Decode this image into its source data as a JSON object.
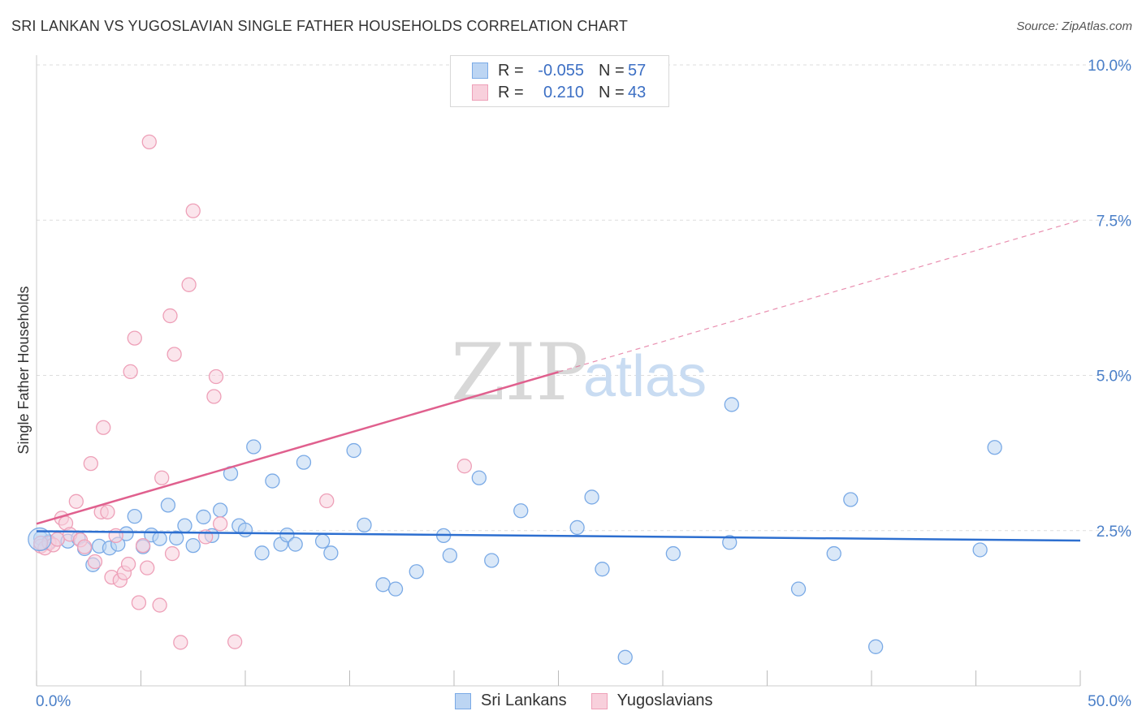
{
  "title": "SRI LANKAN VS YUGOSLAVIAN SINGLE FATHER HOUSEHOLDS CORRELATION CHART",
  "source": "Source: ZipAtlas.com",
  "watermark": {
    "zip": "ZIP",
    "atlas": "atlas"
  },
  "legend_stats": {
    "r_label": "R =",
    "n_label": "N =",
    "rows": [
      {
        "series": "Sri Lankans",
        "r": "-0.055",
        "n": "57"
      },
      {
        "series": "Yugoslavians",
        "r": "0.210",
        "n": "43"
      }
    ]
  },
  "chart_data": {
    "type": "scatter",
    "title": "SRI LANKAN VS YUGOSLAVIAN SINGLE FATHER HOUSEHOLDS CORRELATION CHART",
    "xlabel": "",
    "ylabel": "Single Father Households",
    "xlim": [
      0,
      50
    ],
    "ylim": [
      0,
      10.5
    ],
    "x_tick_labels": [
      "0.0%",
      "50.0%"
    ],
    "y_ticks": [
      {
        "value": 2.5,
        "label": "2.5%"
      },
      {
        "value": 5.0,
        "label": "5.0%"
      },
      {
        "value": 7.5,
        "label": "7.5%"
      },
      {
        "value": 10.0,
        "label": "10.0%"
      }
    ],
    "grid": "horizontal dashed",
    "legend": "bottom-center",
    "series": [
      {
        "name": "Sri Lankans",
        "color": "#7aaae6",
        "fill": "#bcd5f3",
        "trend_color": "#2d6fd0",
        "trend": {
          "x0": 0,
          "y0": 2.49,
          "x1": 50,
          "y1": 2.34,
          "dashed_from": null
        },
        "points": [
          [
            0.2,
            2.38
          ],
          [
            0.6,
            2.32
          ],
          [
            1.0,
            2.36
          ],
          [
            1.5,
            2.33
          ],
          [
            2.0,
            2.38
          ],
          [
            2.3,
            2.21
          ],
          [
            2.7,
            1.95
          ],
          [
            3.0,
            2.25
          ],
          [
            3.5,
            2.22
          ],
          [
            3.9,
            2.28
          ],
          [
            4.3,
            2.45
          ],
          [
            4.7,
            2.73
          ],
          [
            5.1,
            2.24
          ],
          [
            5.5,
            2.43
          ],
          [
            5.9,
            2.37
          ],
          [
            6.3,
            2.91
          ],
          [
            6.7,
            2.38
          ],
          [
            7.1,
            2.58
          ],
          [
            7.5,
            2.26
          ],
          [
            8.0,
            2.72
          ],
          [
            8.4,
            2.42
          ],
          [
            8.8,
            2.83
          ],
          [
            9.3,
            3.42
          ],
          [
            9.7,
            2.58
          ],
          [
            10.0,
            2.51
          ],
          [
            10.4,
            3.85
          ],
          [
            10.8,
            2.14
          ],
          [
            11.3,
            3.3
          ],
          [
            11.7,
            2.28
          ],
          [
            12.0,
            2.43
          ],
          [
            12.4,
            2.28
          ],
          [
            12.8,
            3.6
          ],
          [
            13.7,
            2.33
          ],
          [
            14.1,
            2.14
          ],
          [
            15.2,
            3.79
          ],
          [
            15.7,
            2.59
          ],
          [
            16.6,
            1.63
          ],
          [
            17.2,
            1.56
          ],
          [
            18.2,
            1.84
          ],
          [
            19.5,
            2.42
          ],
          [
            19.8,
            2.1
          ],
          [
            21.2,
            3.35
          ],
          [
            21.8,
            2.02
          ],
          [
            23.2,
            2.82
          ],
          [
            25.9,
            2.55
          ],
          [
            26.6,
            3.04
          ],
          [
            27.1,
            1.88
          ],
          [
            28.2,
            0.46
          ],
          [
            30.5,
            2.13
          ],
          [
            33.2,
            2.31
          ],
          [
            33.3,
            4.53
          ],
          [
            36.5,
            1.56
          ],
          [
            38.2,
            2.13
          ],
          [
            39.0,
            3.0
          ],
          [
            40.2,
            0.63
          ],
          [
            45.2,
            2.19
          ],
          [
            45.9,
            3.84
          ]
        ]
      },
      {
        "name": "Yugoslavians",
        "color": "#eea0b8",
        "fill": "#f8d0dc",
        "trend_color": "#e0608e",
        "trend": {
          "x0": 0,
          "y0": 2.61,
          "x1": 50,
          "y1": 7.5,
          "dashed_from": 25
        },
        "points": [
          [
            0.2,
            2.25
          ],
          [
            0.4,
            2.22
          ],
          [
            0.6,
            2.3
          ],
          [
            0.8,
            2.27
          ],
          [
            1.0,
            2.36
          ],
          [
            1.2,
            2.7
          ],
          [
            1.4,
            2.62
          ],
          [
            1.6,
            2.44
          ],
          [
            1.9,
            2.97
          ],
          [
            2.1,
            2.35
          ],
          [
            2.3,
            2.24
          ],
          [
            2.6,
            3.58
          ],
          [
            2.8,
            2.0
          ],
          [
            3.1,
            2.8
          ],
          [
            3.2,
            4.16
          ],
          [
            3.4,
            2.8
          ],
          [
            3.6,
            1.75
          ],
          [
            3.8,
            2.42
          ],
          [
            4.0,
            1.7
          ],
          [
            4.2,
            1.82
          ],
          [
            4.4,
            1.96
          ],
          [
            4.5,
            5.06
          ],
          [
            4.7,
            5.6
          ],
          [
            4.9,
            1.34
          ],
          [
            5.1,
            2.26
          ],
          [
            5.3,
            1.9
          ],
          [
            5.4,
            8.76
          ],
          [
            5.9,
            1.3
          ],
          [
            6.0,
            3.35
          ],
          [
            6.4,
            5.96
          ],
          [
            6.5,
            2.13
          ],
          [
            6.6,
            5.34
          ],
          [
            6.9,
            0.7
          ],
          [
            7.3,
            6.46
          ],
          [
            7.5,
            7.65
          ],
          [
            8.1,
            2.4
          ],
          [
            8.5,
            4.66
          ],
          [
            8.6,
            4.98
          ],
          [
            8.8,
            2.61
          ],
          [
            9.5,
            0.71
          ],
          [
            13.9,
            2.98
          ],
          [
            20.5,
            3.54
          ],
          [
            0.2,
            2.3
          ]
        ]
      }
    ]
  }
}
